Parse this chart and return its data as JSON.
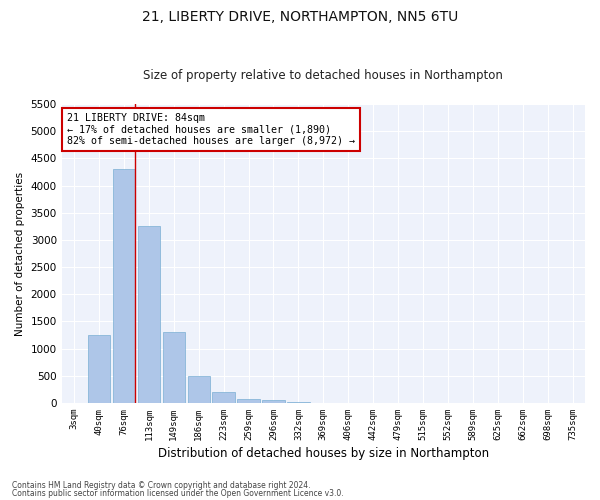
{
  "title": "21, LIBERTY DRIVE, NORTHAMPTON, NN5 6TU",
  "subtitle": "Size of property relative to detached houses in Northampton",
  "xlabel": "Distribution of detached houses by size in Northampton",
  "ylabel": "Number of detached properties",
  "footnote1": "Contains HM Land Registry data © Crown copyright and database right 2024.",
  "footnote2": "Contains public sector information licensed under the Open Government Licence v3.0.",
  "annotation_title": "21 LIBERTY DRIVE: 84sqm",
  "annotation_line1": "← 17% of detached houses are smaller (1,890)",
  "annotation_line2": "82% of semi-detached houses are larger (8,972) →",
  "categories": [
    "3sqm",
    "40sqm",
    "76sqm",
    "113sqm",
    "149sqm",
    "186sqm",
    "223sqm",
    "259sqm",
    "296sqm",
    "332sqm",
    "369sqm",
    "406sqm",
    "442sqm",
    "479sqm",
    "515sqm",
    "552sqm",
    "589sqm",
    "625sqm",
    "662sqm",
    "698sqm",
    "735sqm"
  ],
  "values": [
    0,
    1250,
    4300,
    3250,
    1300,
    500,
    200,
    75,
    50,
    20,
    0,
    0,
    0,
    0,
    0,
    0,
    0,
    0,
    0,
    0,
    0
  ],
  "bar_color": "#aec6e8",
  "bar_edge_color": "#7bafd4",
  "red_line_index": 2,
  "ylim": [
    0,
    5500
  ],
  "yticks": [
    0,
    500,
    1000,
    1500,
    2000,
    2500,
    3000,
    3500,
    4000,
    4500,
    5000,
    5500
  ],
  "bg_color": "#eef2fb",
  "grid_color": "#ffffff",
  "annotation_box_color": "#ffffff",
  "annotation_border_color": "#cc0000",
  "red_line_color": "#cc0000",
  "title_fontsize": 10,
  "subtitle_fontsize": 9
}
